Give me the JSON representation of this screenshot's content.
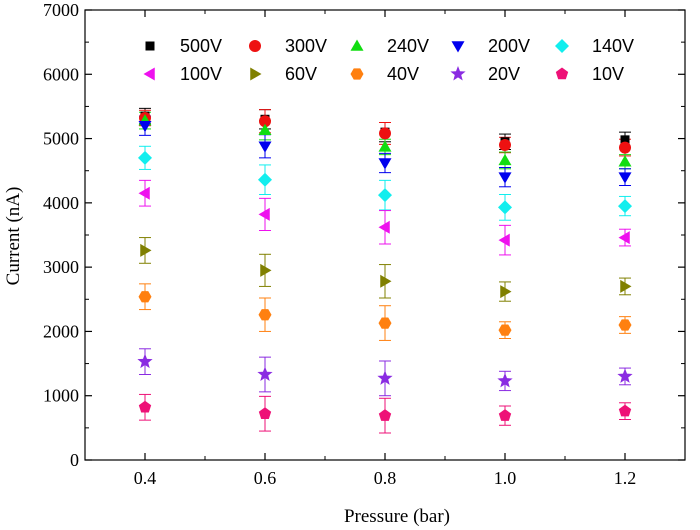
{
  "chart_data": {
    "type": "scatter",
    "title": "",
    "xlabel": "Pressure (bar)",
    "ylabel": "Current (nA)",
    "xlim": [
      0.3,
      1.3
    ],
    "ylim": [
      0,
      7000
    ],
    "xticks": [
      0.4,
      0.6,
      0.8,
      1.0,
      1.2
    ],
    "xtick_labels": [
      "0.4",
      "0.6",
      "0.8",
      "1.0",
      "1.2"
    ],
    "yticks": [
      0,
      1000,
      2000,
      3000,
      4000,
      5000,
      6000,
      7000
    ],
    "ytick_labels": [
      "0",
      "1000",
      "2000",
      "3000",
      "4000",
      "5000",
      "6000",
      "7000"
    ],
    "grid": false,
    "legend_position": "top",
    "x": [
      0.4,
      0.6,
      0.8,
      1.0,
      1.2
    ],
    "series": [
      {
        "name": "500V",
        "marker": "square",
        "color": "#000000",
        "values": [
          5350,
          5300,
          5100,
          4950,
          4980
        ],
        "errors": [
          120,
          150,
          150,
          120,
          120
        ]
      },
      {
        "name": "300V",
        "marker": "circle",
        "color": "#ee1111",
        "values": [
          5320,
          5270,
          5080,
          4900,
          4860
        ],
        "errors": [
          120,
          180,
          170,
          120,
          130
        ]
      },
      {
        "name": "240V",
        "marker": "triangle-up",
        "color": "#11dd11",
        "values": [
          5280,
          5130,
          4870,
          4660,
          4640
        ],
        "errors": [
          130,
          150,
          120,
          130,
          110
        ]
      },
      {
        "name": "200V",
        "marker": "triangle-down",
        "color": "#0000ee",
        "values": [
          5200,
          4880,
          4620,
          4400,
          4400
        ],
        "errors": [
          150,
          180,
          150,
          150,
          130
        ]
      },
      {
        "name": "140V",
        "marker": "diamond",
        "color": "#11eeee",
        "values": [
          4700,
          4360,
          4120,
          3930,
          3950
        ],
        "errors": [
          180,
          230,
          230,
          200,
          150
        ]
      },
      {
        "name": "100V",
        "marker": "triangle-left",
        "color": "#ee11ee",
        "values": [
          4150,
          3820,
          3620,
          3420,
          3460
        ],
        "errors": [
          200,
          250,
          260,
          230,
          130
        ]
      },
      {
        "name": "60V",
        "marker": "triangle-right",
        "color": "#808000",
        "values": [
          3260,
          2950,
          2780,
          2620,
          2700
        ],
        "errors": [
          200,
          250,
          260,
          150,
          130
        ]
      },
      {
        "name": "40V",
        "marker": "hexagon",
        "color": "#ff8010",
        "values": [
          2540,
          2260,
          2130,
          2020,
          2100
        ],
        "errors": [
          200,
          260,
          270,
          130,
          130
        ]
      },
      {
        "name": "20V",
        "marker": "star",
        "color": "#8a2be2",
        "values": [
          1530,
          1330,
          1270,
          1230,
          1300
        ],
        "errors": [
          200,
          270,
          270,
          150,
          130
        ]
      },
      {
        "name": "10V",
        "marker": "pentagon",
        "color": "#ee1177",
        "values": [
          820,
          720,
          690,
          690,
          760
        ],
        "errors": [
          200,
          270,
          270,
          150,
          130
        ]
      }
    ]
  }
}
